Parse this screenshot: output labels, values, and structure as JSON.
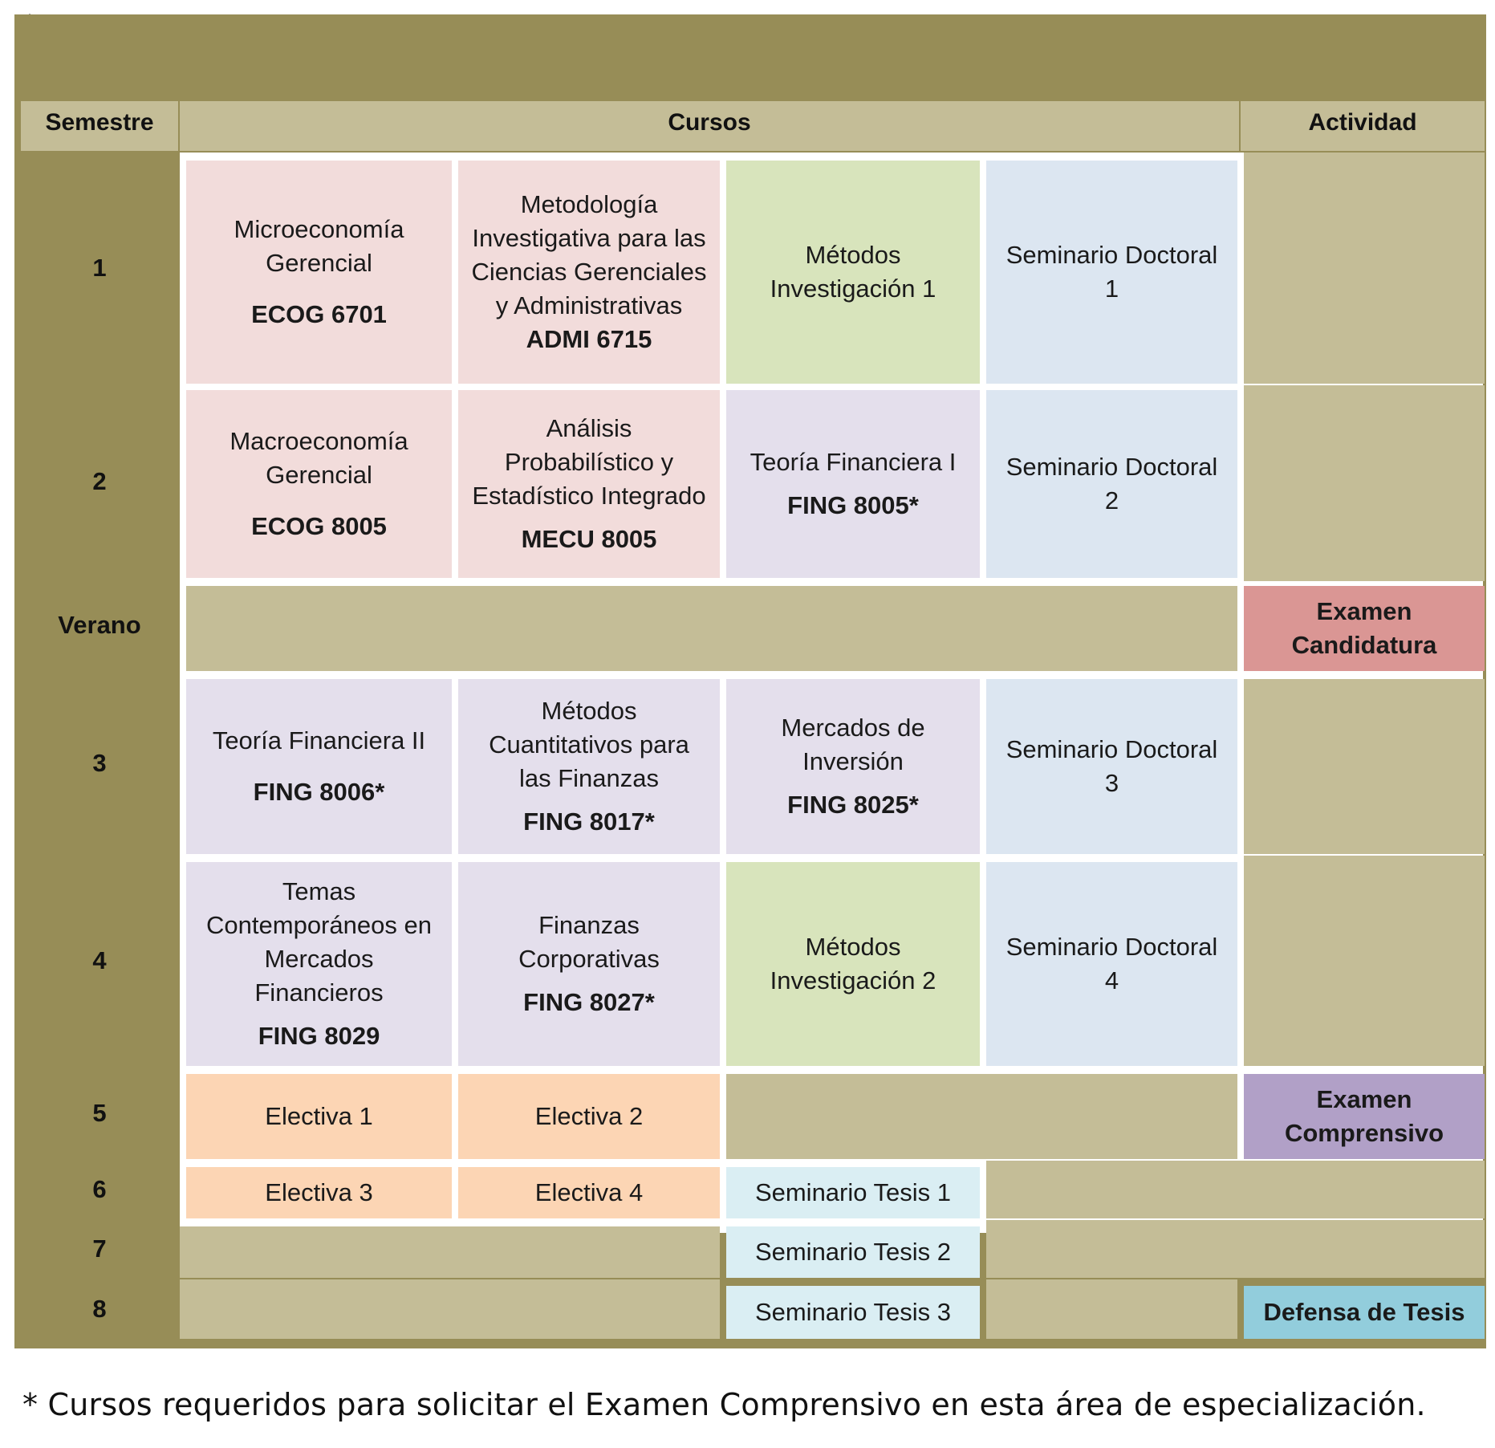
{
  "header": {
    "semestre": "Semestre",
    "cursos": "Cursos",
    "actividad": "Actividad"
  },
  "rows": [
    {
      "semestre": "1",
      "courses": [
        {
          "name": "Microeconomía Gerencial",
          "code": "ECOG 6701"
        },
        {
          "name": "Metodología Investigativa para las Ciencias Gerenciales y Administrativas",
          "code": "ADMI 6715"
        },
        {
          "name": "Métodos Investigación 1"
        },
        {
          "name": "Seminario Doctoral 1"
        }
      ]
    },
    {
      "semestre": "2",
      "courses": [
        {
          "name": "Macroeconomía Gerencial",
          "code": "ECOG 8005"
        },
        {
          "name": "Análisis Probabilístico y Estadístico Integrado",
          "code": "MECU 8005"
        },
        {
          "name": "Teoría Financiera I",
          "code": "FING 8005*"
        },
        {
          "name": "Seminario Doctoral 2"
        }
      ]
    },
    {
      "semestre": "Verano",
      "actividad": "Examen Candidatura"
    },
    {
      "semestre": "3",
      "courses": [
        {
          "name": "Teoría Financiera II",
          "code": "FING 8006*"
        },
        {
          "name": "Métodos Cuantitativos para las Finanzas",
          "code": "FING 8017*"
        },
        {
          "name": "Mercados de Inversión",
          "code": "FING 8025*"
        },
        {
          "name": "Seminario Doctoral 3"
        }
      ]
    },
    {
      "semestre": "4",
      "courses": [
        {
          "name": "Temas Contemporáneos en Mercados Financieros",
          "code": "FING 8029"
        },
        {
          "name": "Finanzas Corporativas",
          "code": "FING 8027*"
        },
        {
          "name": "Métodos Investigación 2"
        },
        {
          "name": "Seminario Doctoral 4"
        }
      ]
    },
    {
      "semestre": "5",
      "courses": [
        {
          "name": "Electiva 1"
        },
        {
          "name": "Electiva 2"
        }
      ],
      "actividad": "Examen Comprensivo"
    },
    {
      "semestre": "6",
      "courses": [
        {
          "name": "Electiva 3"
        },
        {
          "name": "Electiva 4"
        },
        {
          "name": "Seminario Tesis 1"
        }
      ]
    },
    {
      "semestre": "7",
      "courses": [
        {
          "name": "Seminario Tesis 2"
        }
      ]
    },
    {
      "semestre": "8",
      "courses": [
        {
          "name": "Seminario Tesis 3"
        }
      ],
      "actividad": "Defensa de Tesis"
    }
  ],
  "top_mark": ".",
  "footnote": "* Cursos requeridos para solicitar el Examen Comprensivo en esta área de especialización.",
  "colors": {
    "frame": "#978d57",
    "header": "#c4bd97",
    "pink": "#f2dcdb",
    "lavender": "#e4dfec",
    "green": "#d8e4bc",
    "blue": "#dce6f1",
    "peach": "#fcd5b4",
    "light_blue": "#daeef3",
    "candidatura": "#da9694",
    "comprensivo": "#b1a0c7",
    "defensa": "#92cddc"
  }
}
